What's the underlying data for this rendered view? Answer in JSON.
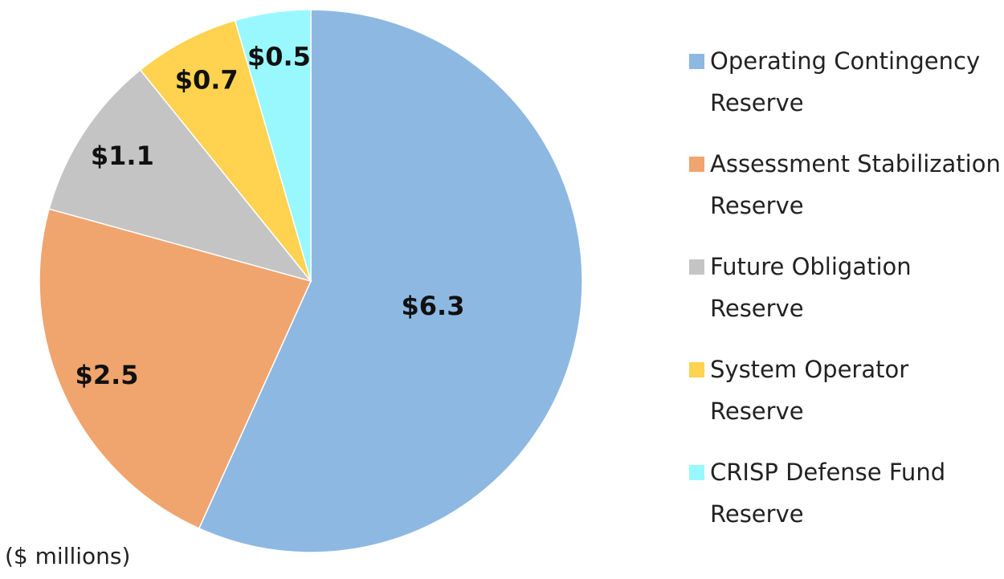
{
  "chart_data": {
    "type": "pie",
    "categories": [
      "Operating Contingency Reserve",
      "Assessment Stabilization Reserve",
      "Future Obligation Reserve",
      "System Operator Reserve",
      "CRISP Defense Fund Reserve"
    ],
    "values": [
      6.3,
      2.5,
      1.1,
      0.7,
      0.5
    ],
    "value_labels": [
      "$6.3",
      "$2.5",
      "$1.1",
      "$0.7",
      "$0.5"
    ],
    "colors": [
      "#8db8e2",
      "#f0a46e",
      "#c4c4c4",
      "#ffd24f",
      "#99f8fd"
    ],
    "annotation": "($ millions)",
    "legend": "right"
  }
}
